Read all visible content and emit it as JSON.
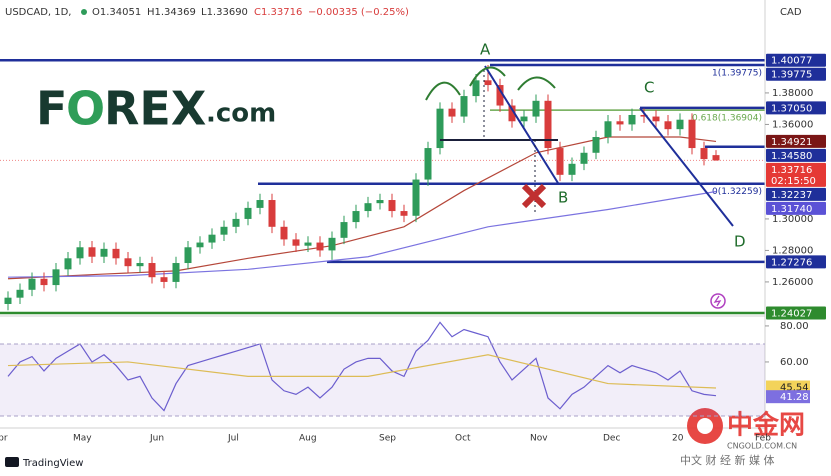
{
  "chart_data": {
    "type": "candlestick",
    "symbol": "USDCAD, 1D,",
    "legend": [
      "O1.34051",
      "H1.34369",
      "L1.33690",
      "C1.33716",
      "−0.00335 (−0.25%)"
    ],
    "currency": "CAD",
    "up_color": "#2e9b5a",
    "down_color": "#d83c3c",
    "open": [
      1.246,
      1.25,
      1.255,
      1.262,
      1.258,
      1.268,
      1.275,
      1.282,
      1.276,
      1.281,
      1.275,
      1.27,
      1.272,
      1.263,
      1.26,
      1.272,
      1.282,
      1.285,
      1.29,
      1.295,
      1.3,
      1.307,
      1.312,
      1.295,
      1.287,
      1.283,
      1.285,
      1.28,
      1.288,
      1.298,
      1.305,
      1.31,
      1.312,
      1.305,
      1.302,
      1.325,
      1.345,
      1.37,
      1.365,
      1.378,
      1.388,
      1.385,
      1.372,
      1.362,
      1.365,
      1.375,
      1.345,
      1.328,
      1.335,
      1.342,
      1.352,
      1.362,
      1.36,
      1.366,
      1.365,
      1.362,
      1.357,
      1.363,
      1.345,
      1.34051
    ],
    "high": [
      1.254,
      1.259,
      1.266,
      1.266,
      1.272,
      1.279,
      1.286,
      1.286,
      1.285,
      1.285,
      1.279,
      1.276,
      1.276,
      1.267,
      1.276,
      1.286,
      1.289,
      1.294,
      1.299,
      1.304,
      1.311,
      1.316,
      1.316,
      1.299,
      1.291,
      1.289,
      1.289,
      1.292,
      1.302,
      1.309,
      1.314,
      1.316,
      1.316,
      1.309,
      1.329,
      1.349,
      1.374,
      1.374,
      1.382,
      1.392,
      1.3977,
      1.389,
      1.376,
      1.369,
      1.379,
      1.379,
      1.349,
      1.339,
      1.346,
      1.356,
      1.366,
      1.366,
      1.37,
      1.37,
      1.369,
      1.366,
      1.367,
      1.367,
      1.349,
      1.34369
    ],
    "low": [
      1.242,
      1.246,
      1.251,
      1.254,
      1.254,
      1.264,
      1.271,
      1.272,
      1.272,
      1.271,
      1.266,
      1.266,
      1.259,
      1.256,
      1.256,
      1.268,
      1.278,
      1.281,
      1.286,
      1.291,
      1.296,
      1.303,
      1.291,
      1.283,
      1.279,
      1.279,
      1.276,
      1.274,
      1.284,
      1.294,
      1.301,
      1.306,
      1.301,
      1.298,
      1.298,
      1.321,
      1.341,
      1.361,
      1.361,
      1.374,
      1.381,
      1.368,
      1.358,
      1.358,
      1.361,
      1.341,
      1.324,
      1.324,
      1.331,
      1.338,
      1.348,
      1.356,
      1.356,
      1.361,
      1.358,
      1.353,
      1.353,
      1.341,
      1.334,
      1.3369
    ],
    "close": [
      1.25,
      1.255,
      1.262,
      1.258,
      1.268,
      1.275,
      1.282,
      1.276,
      1.281,
      1.275,
      1.27,
      1.272,
      1.263,
      1.26,
      1.272,
      1.282,
      1.285,
      1.29,
      1.295,
      1.3,
      1.307,
      1.312,
      1.295,
      1.287,
      1.283,
      1.285,
      1.28,
      1.288,
      1.298,
      1.305,
      1.31,
      1.312,
      1.305,
      1.302,
      1.325,
      1.345,
      1.37,
      1.365,
      1.378,
      1.388,
      1.385,
      1.372,
      1.362,
      1.365,
      1.375,
      1.345,
      1.328,
      1.335,
      1.342,
      1.352,
      1.362,
      1.36,
      1.366,
      1.365,
      1.362,
      1.357,
      1.363,
      1.345,
      1.338,
      1.33716
    ],
    "ylim": [
      1.239,
      1.439
    ],
    "yticks": [
      {
        "value": 1.26,
        "label": "1.26000"
      },
      {
        "value": 1.28,
        "label": "1.28000"
      },
      {
        "value": 1.3,
        "label": "1.30000"
      },
      {
        "value": 1.36,
        "label": "1.36000"
      },
      {
        "value": 1.38,
        "label": "1.38000"
      }
    ],
    "x_labels": [
      "Apr",
      "May",
      "Jun",
      "Jul",
      "Aug",
      "Sep",
      "Oct",
      "Nov",
      "Dec",
      "20",
      "Feb"
    ],
    "moving_averages": [
      {
        "color": "#b5473a",
        "x": [
          0,
          8,
          14,
          20,
          27,
          33,
          38,
          44,
          50,
          56,
          59
        ],
        "values": [
          1.262,
          1.265,
          1.267,
          1.275,
          1.283,
          1.295,
          1.318,
          1.342,
          1.352,
          1.352,
          1.34921
        ]
      },
      {
        "color": "#7b73e0",
        "x": [
          0,
          10,
          20,
          30,
          40,
          50,
          59
        ],
        "values": [
          1.263,
          1.264,
          1.268,
          1.276,
          1.295,
          1.306,
          1.3174
        ]
      }
    ],
    "price_tags": [
      {
        "value": 1.40077,
        "label": "1.40077",
        "color": "#1f2f9a"
      },
      {
        "value": 1.39775,
        "label": "1.39775",
        "color": "#1f2f9a"
      },
      {
        "value": 1.3705,
        "label": "1.37050",
        "color": "#1f2f9a"
      },
      {
        "value": 1.34921,
        "label": "1.34921",
        "color": "#7a1616"
      },
      {
        "value": 1.3458,
        "label": "1.34580",
        "color": "#1f2f9a"
      },
      {
        "value": 1.33716,
        "label": "1.33716",
        "color": "#e53935"
      },
      {
        "value": 1.32237,
        "label": "1.32237",
        "color": "#1f2f9a"
      },
      {
        "value": 1.3174,
        "label": "1.31740",
        "color": "#5b52d6"
      },
      {
        "value": 1.27276,
        "label": "1.27276",
        "color": "#1f2f9a"
      },
      {
        "value": 1.24027,
        "label": "1.24027",
        "color": "#2e8b2e"
      }
    ],
    "countdown": "02:15:50",
    "fib_labels": [
      {
        "value": 1.39775,
        "label": "1(1.39775)"
      },
      {
        "value": 1.36904,
        "label": "0.618(1.36904)"
      },
      {
        "value": 1.32259,
        "label": "0(1.32259)"
      }
    ],
    "annotations": [
      "A",
      "B",
      "C",
      "D"
    ],
    "rsi": {
      "ylim": [
        25,
        84.4
      ],
      "yticks": [
        {
          "value": 80,
          "label": "80.00"
        },
        {
          "value": 60,
          "label": "60.00"
        }
      ],
      "band": [
        30,
        70
      ],
      "color": "#6a5fd0",
      "values": [
        52,
        60,
        63,
        55,
        62,
        66,
        70,
        60,
        64,
        58,
        50,
        52,
        40,
        33,
        48,
        58,
        60,
        62,
        64,
        66,
        68,
        70,
        50,
        44,
        42,
        46,
        40,
        46,
        56,
        60,
        62,
        62,
        55,
        52,
        66,
        72,
        82,
        74,
        78,
        76,
        74,
        60,
        50,
        56,
        62,
        40,
        34,
        42,
        46,
        52,
        58,
        54,
        58,
        56,
        54,
        50,
        55,
        44,
        42,
        41.28
      ],
      "ma": {
        "color": "#e8c84a",
        "x": [
          0,
          10,
          20,
          30,
          40,
          50,
          59
        ],
        "values": [
          58,
          60,
          52,
          52,
          64,
          48,
          45.54
        ]
      },
      "tags": [
        {
          "value": 45.54,
          "label": "45.54",
          "color": "#f3d35a"
        },
        {
          "value": 41.28,
          "label": "41.28",
          "color": "#7d6fe0"
        }
      ]
    }
  },
  "branding": {
    "logo": [
      "F",
      "O",
      "REX",
      ".com"
    ],
    "platform": "TradingView",
    "watermark": [
      "中金网",
      "CNGOLD.COM.CN",
      "中文 财 经 新 媒 体"
    ]
  }
}
